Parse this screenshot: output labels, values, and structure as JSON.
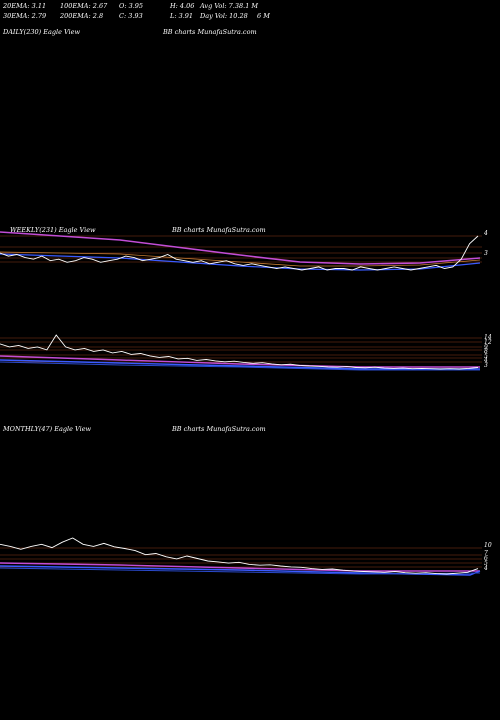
{
  "stats": {
    "ema20": "20EMA: 3.11",
    "ema100": "100EMA: 2.67",
    "open": "O: 3.95",
    "high": "H: 4.06",
    "avg_vol": "Avg Vol: 7.38.1 M",
    "ema30": "30EMA: 2.79",
    "ema200": "200EMA: 2.8",
    "close": "C: 3.93",
    "low": "L: 3.91",
    "day_vol": "Day Vol: 10.28",
    "day_vol_unit": "6  M"
  },
  "colors": {
    "background": "#000000",
    "price": "#ffffff",
    "ema_blue": "#3a5bff",
    "ema_purple": "#c24dd6",
    "ema_orange": "#c77d33",
    "volume": "#4466ff",
    "grid": "#8a3a1a"
  },
  "chart_data": [
    {
      "type": "line",
      "title": "DAILY(230) Eagle  View",
      "watermark": "BB charts MunafaSutra.com",
      "series": [],
      "note_empty": true
    },
    {
      "type": "line",
      "title": "WEEKLY(231) Eagle  View",
      "watermark": "BB charts MunafaSutra.com",
      "ytick_labels": [
        "4",
        "3"
      ],
      "series": [
        {
          "values": [
            5.0,
            4.8,
            4.9,
            4.7,
            4.6,
            4.8,
            4.5,
            4.6,
            4.4,
            4.5,
            4.7,
            4.6,
            4.4,
            4.5,
            4.6,
            4.8,
            4.7,
            4.5,
            4.6,
            4.7,
            4.9,
            4.6,
            4.5,
            4.4,
            4.5,
            4.3,
            4.4,
            4.5,
            4.3,
            4.2,
            4.3,
            4.2,
            4.1,
            4.0,
            4.1,
            4.0,
            3.9,
            4.0,
            4.1,
            3.9,
            4.0,
            4.0,
            3.9,
            4.1,
            4.0,
            3.9,
            4.0,
            4.1,
            4.0,
            3.9,
            4.0,
            4.1,
            4.2,
            4.0,
            4.1,
            4.6,
            5.6,
            6.1
          ]
        }
      ]
    },
    {
      "type": "line",
      "title": "",
      "watermark": "",
      "ytick_labels": [
        "14",
        "12",
        "9",
        "8",
        "5",
        "4",
        "3"
      ],
      "series": [
        {
          "values": [
            12,
            11,
            11.5,
            10.5,
            11,
            10,
            15,
            11,
            10,
            10.5,
            9.5,
            10,
            9,
            9.5,
            8.5,
            8.8,
            8,
            7.5,
            7.8,
            7,
            7.2,
            6.5,
            6.8,
            6.3,
            6,
            6.2,
            5.8,
            5.5,
            5.7,
            5.3,
            5,
            5.2,
            4.8,
            4.6,
            4.5,
            4.3,
            4.2,
            4.4,
            4.1,
            4,
            4.2,
            3.9,
            3.8,
            3.9,
            3.7,
            3.8,
            3.7,
            3.6,
            3.7,
            3.6,
            3.8,
            4.1
          ]
        }
      ]
    },
    {
      "type": "line",
      "title": "MONTHLY(47) Eagle  View",
      "watermark": "BB charts MunafaSutra.com",
      "ytick_labels": [
        "10",
        "7",
        "6",
        "5",
        "4"
      ],
      "series": [
        {
          "values": [
            11,
            10.5,
            9.8,
            10.5,
            11,
            10.2,
            11.5,
            12.5,
            11,
            10.5,
            11.2,
            10.4,
            10,
            9.5,
            8.5,
            8.8,
            8,
            7.5,
            8.2,
            7.6,
            7,
            6.8,
            6.5,
            6.7,
            6.2,
            6,
            6.1,
            5.8,
            5.6,
            5.5,
            5.2,
            5,
            5.1,
            4.8,
            4.6,
            4.5,
            4.4,
            4.3,
            4.5,
            4.2,
            4.1,
            4.2,
            4,
            3.9,
            4.1,
            4.3,
            5.2
          ]
        }
      ]
    }
  ]
}
